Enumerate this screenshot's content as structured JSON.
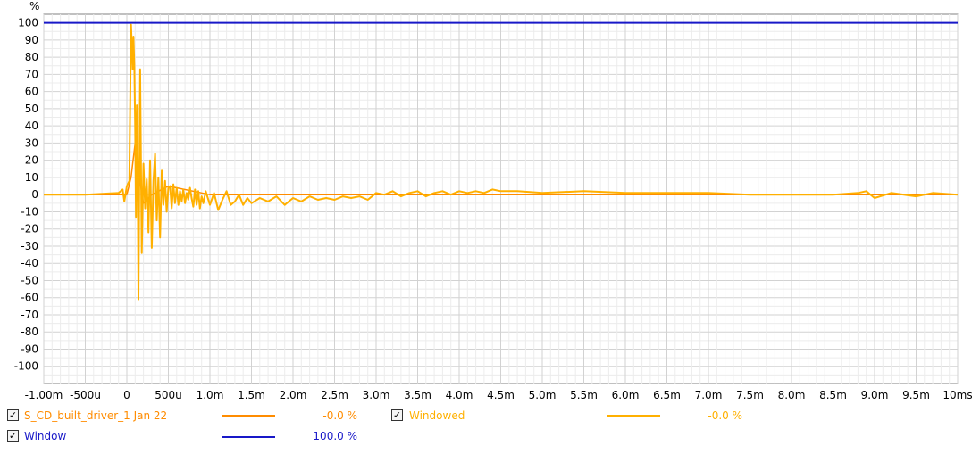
{
  "chart_data": {
    "type": "line",
    "ylabel": "%",
    "xlim": [
      -0.001,
      0.01
    ],
    "ylim": [
      -110,
      105
    ],
    "x_ticks": [
      {
        "v": -0.001,
        "label": "-1.00m"
      },
      {
        "v": -0.0005,
        "label": "-500u"
      },
      {
        "v": 0,
        "label": "0"
      },
      {
        "v": 0.0005,
        "label": "500u"
      },
      {
        "v": 0.001,
        "label": "1.0m"
      },
      {
        "v": 0.0015,
        "label": "1.5m"
      },
      {
        "v": 0.002,
        "label": "2.0m"
      },
      {
        "v": 0.0025,
        "label": "2.5m"
      },
      {
        "v": 0.003,
        "label": "3.0m"
      },
      {
        "v": 0.0035,
        "label": "3.5m"
      },
      {
        "v": 0.004,
        "label": "4.0m"
      },
      {
        "v": 0.0045,
        "label": "4.5m"
      },
      {
        "v": 0.005,
        "label": "5.0m"
      },
      {
        "v": 0.0055,
        "label": "5.5m"
      },
      {
        "v": 0.006,
        "label": "6.0m"
      },
      {
        "v": 0.0065,
        "label": "6.5m"
      },
      {
        "v": 0.007,
        "label": "7.0m"
      },
      {
        "v": 0.0075,
        "label": "7.5m"
      },
      {
        "v": 0.008,
        "label": "8.0m"
      },
      {
        "v": 0.0085,
        "label": "8.5m"
      },
      {
        "v": 0.009,
        "label": "9.0m"
      },
      {
        "v": 0.0095,
        "label": "9.5m"
      },
      {
        "v": 0.01,
        "label": "10ms"
      }
    ],
    "y_ticks": [
      100,
      90,
      80,
      70,
      60,
      50,
      40,
      30,
      20,
      10,
      0,
      -10,
      -20,
      -30,
      -40,
      -50,
      -60,
      -70,
      -80,
      -90,
      -100
    ],
    "grid": true,
    "series": [
      {
        "name": "S_CD_built_driver_1 Jan 22",
        "color": "#ff8c00",
        "value_text": "-0.0 %",
        "x": [
          -0.001,
          0,
          5e-05,
          0.0001,
          0.00015,
          0.0002,
          0.0003,
          0.0005,
          0.001,
          0.002,
          0.004,
          0.007,
          0.01
        ],
        "y": [
          0,
          0,
          10,
          30,
          10,
          -5,
          0,
          5,
          0,
          0,
          0,
          0,
          0
        ]
      },
      {
        "name": "Windowed",
        "color": "#ffb000",
        "value_text": "-0.0 %",
        "x": [
          -0.001,
          -0.0005,
          -0.0001,
          -5e-05,
          -3e-05,
          0,
          3e-05,
          5e-05,
          7e-05,
          8e-05,
          9e-05,
          0.0001,
          0.00011,
          0.00012,
          0.00013,
          0.00014,
          0.00015,
          0.00016,
          0.00018,
          0.0002,
          0.00022,
          0.00024,
          0.00026,
          0.00028,
          0.0003,
          0.00032,
          0.00034,
          0.00036,
          0.00038,
          0.0004,
          0.00042,
          0.00044,
          0.00046,
          0.00048,
          0.0005,
          0.00052,
          0.00054,
          0.00056,
          0.00058,
          0.0006,
          0.00062,
          0.00064,
          0.00066,
          0.00068,
          0.0007,
          0.00072,
          0.00074,
          0.00076,
          0.00078,
          0.0008,
          0.00082,
          0.00084,
          0.00086,
          0.00088,
          0.0009,
          0.00092,
          0.00095,
          0.001,
          0.00105,
          0.0011,
          0.00115,
          0.0012,
          0.00125,
          0.0013,
          0.00135,
          0.0014,
          0.00145,
          0.0015,
          0.0016,
          0.0017,
          0.0018,
          0.0019,
          0.002,
          0.0021,
          0.0022,
          0.0023,
          0.0024,
          0.0025,
          0.0026,
          0.0027,
          0.0028,
          0.0029,
          0.003,
          0.0031,
          0.0032,
          0.0033,
          0.0034,
          0.0035,
          0.0036,
          0.0037,
          0.0038,
          0.0039,
          0.004,
          0.0041,
          0.0042,
          0.0043,
          0.0044,
          0.0045,
          0.0047,
          0.005,
          0.0055,
          0.006,
          0.0065,
          0.007,
          0.0075,
          0.008,
          0.0085,
          0.0088,
          0.0089,
          0.009,
          0.0092,
          0.0095,
          0.0097,
          0.01
        ],
        "y": [
          0,
          0,
          1,
          3,
          -4,
          5,
          8,
          99,
          73,
          92,
          75,
          40,
          -13,
          52,
          20,
          -61,
          5,
          73,
          -34,
          18,
          -8,
          9,
          -22,
          20,
          -31,
          8,
          24,
          -15,
          10,
          -25,
          14,
          -6,
          8,
          -10,
          4,
          5,
          -8,
          6,
          -5,
          4,
          -6,
          2,
          -4,
          3,
          -5,
          1,
          -3,
          4,
          -2,
          -7,
          3,
          -6,
          2,
          -8,
          -1,
          -5,
          2,
          -6,
          1,
          -9,
          -3,
          2,
          -6,
          -4,
          0,
          -6,
          -2,
          -5,
          -2,
          -4,
          -1,
          -6,
          -2,
          -4,
          -1,
          -3,
          -2,
          -3,
          -1,
          -2,
          -1,
          -3,
          1,
          0,
          2,
          -1,
          1,
          2,
          -1,
          1,
          2,
          0,
          2,
          1,
          2,
          1,
          3,
          2,
          2,
          1,
          2,
          1,
          1,
          1,
          0,
          0,
          0,
          1,
          2,
          -2,
          1,
          -1,
          1,
          0
        ]
      },
      {
        "name": "Window",
        "color": "#1818c8",
        "value_text": "100.0 %",
        "x": [
          -0.001,
          0.01
        ],
        "y": [
          100,
          100
        ]
      }
    ]
  },
  "legend": [
    {
      "name": "S_CD_built_driver_1 Jan 22",
      "value": "-0.0 %",
      "checked": "✓",
      "color": "#ff8c00"
    },
    {
      "name": "Windowed",
      "value": "-0.0 %",
      "checked": "✓",
      "color": "#ffb000"
    },
    {
      "name": "Window",
      "value": "100.0 %",
      "checked": "✓",
      "color": "#1818c8"
    }
  ]
}
